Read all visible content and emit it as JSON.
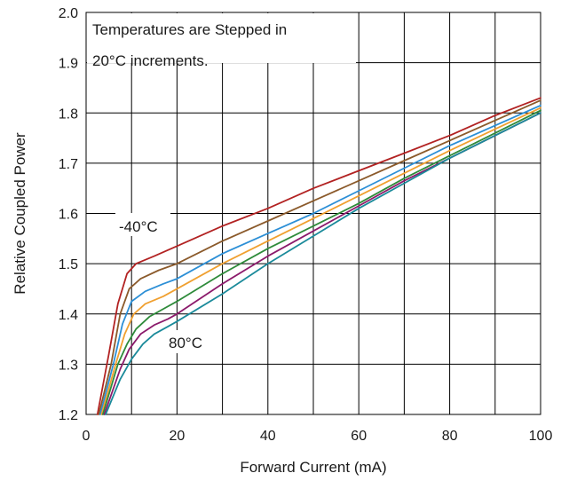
{
  "chart_data": {
    "type": "line",
    "title": "",
    "xlabel": "Forward Current (mA)",
    "ylabel": "Relative Coupled Power",
    "xlim": [
      0,
      100
    ],
    "ylim": [
      1.2,
      2.0
    ],
    "xticks": [
      "0",
      "20",
      "40",
      "60",
      "80",
      "100"
    ],
    "yticks": [
      "1.2",
      "1.3",
      "1.4",
      "1.5",
      "1.6",
      "1.7",
      "1.8",
      "1.9",
      "2.0"
    ],
    "grid": true,
    "legend": "none",
    "annotations": {
      "note_line1": "Temperatures are Stepped in",
      "note_line2": "20°C increments.",
      "label_cold": "-40°C",
      "label_hot": "80°C"
    },
    "series": [
      {
        "color": "#b22222",
        "points": [
          [
            2.5,
            1.2
          ],
          [
            5,
            1.32
          ],
          [
            7,
            1.42
          ],
          [
            9,
            1.48
          ],
          [
            11,
            1.5
          ],
          [
            15,
            1.515
          ],
          [
            20,
            1.535
          ],
          [
            30,
            1.575
          ],
          [
            40,
            1.61
          ],
          [
            50,
            1.65
          ],
          [
            60,
            1.685
          ],
          [
            70,
            1.72
          ],
          [
            80,
            1.755
          ],
          [
            90,
            1.795
          ],
          [
            100,
            1.83
          ]
        ]
      },
      {
        "color": "#8b5a2b",
        "points": [
          [
            2.8,
            1.2
          ],
          [
            5.5,
            1.3
          ],
          [
            7.5,
            1.4
          ],
          [
            9.5,
            1.45
          ],
          [
            12,
            1.47
          ],
          [
            16,
            1.487
          ],
          [
            20,
            1.5
          ],
          [
            30,
            1.545
          ],
          [
            40,
            1.585
          ],
          [
            50,
            1.625
          ],
          [
            60,
            1.665
          ],
          [
            70,
            1.705
          ],
          [
            80,
            1.745
          ],
          [
            90,
            1.785
          ],
          [
            100,
            1.825
          ]
        ]
      },
      {
        "color": "#2c8fd6",
        "points": [
          [
            3.1,
            1.2
          ],
          [
            6,
            1.3
          ],
          [
            8,
            1.38
          ],
          [
            10,
            1.425
          ],
          [
            13,
            1.445
          ],
          [
            17,
            1.46
          ],
          [
            20,
            1.47
          ],
          [
            30,
            1.52
          ],
          [
            40,
            1.56
          ],
          [
            50,
            1.6
          ],
          [
            60,
            1.645
          ],
          [
            70,
            1.69
          ],
          [
            80,
            1.735
          ],
          [
            90,
            1.775
          ],
          [
            100,
            1.815
          ]
        ]
      },
      {
        "color": "#f0a030",
        "points": [
          [
            3.4,
            1.2
          ],
          [
            6.5,
            1.3
          ],
          [
            8.5,
            1.36
          ],
          [
            10.5,
            1.4
          ],
          [
            13,
            1.42
          ],
          [
            17,
            1.435
          ],
          [
            20,
            1.45
          ],
          [
            30,
            1.5
          ],
          [
            40,
            1.545
          ],
          [
            50,
            1.59
          ],
          [
            60,
            1.635
          ],
          [
            70,
            1.68
          ],
          [
            80,
            1.725
          ],
          [
            90,
            1.768
          ],
          [
            100,
            1.81
          ]
        ]
      },
      {
        "color": "#2e8b3a",
        "points": [
          [
            3.7,
            1.2
          ],
          [
            7,
            1.3
          ],
          [
            9,
            1.34
          ],
          [
            11,
            1.37
          ],
          [
            14,
            1.395
          ],
          [
            17,
            1.41
          ],
          [
            20,
            1.425
          ],
          [
            30,
            1.48
          ],
          [
            40,
            1.53
          ],
          [
            50,
            1.575
          ],
          [
            60,
            1.62
          ],
          [
            70,
            1.67
          ],
          [
            80,
            1.715
          ],
          [
            90,
            1.76
          ],
          [
            100,
            1.805
          ]
        ]
      },
      {
        "color": "#8b1a6b",
        "points": [
          [
            4.0,
            1.2
          ],
          [
            7.5,
            1.29
          ],
          [
            9.5,
            1.33
          ],
          [
            12,
            1.36
          ],
          [
            15,
            1.378
          ],
          [
            18,
            1.39
          ],
          [
            20,
            1.4
          ],
          [
            30,
            1.46
          ],
          [
            40,
            1.515
          ],
          [
            50,
            1.565
          ],
          [
            60,
            1.615
          ],
          [
            70,
            1.665
          ],
          [
            80,
            1.71
          ],
          [
            90,
            1.755
          ],
          [
            100,
            1.8
          ]
        ]
      },
      {
        "color": "#1a8a9a",
        "points": [
          [
            4.3,
            1.2
          ],
          [
            7.5,
            1.27
          ],
          [
            10,
            1.31
          ],
          [
            12.5,
            1.34
          ],
          [
            15,
            1.36
          ],
          [
            18,
            1.375
          ],
          [
            20,
            1.385
          ],
          [
            30,
            1.44
          ],
          [
            40,
            1.5
          ],
          [
            50,
            1.555
          ],
          [
            60,
            1.61
          ],
          [
            70,
            1.66
          ],
          [
            80,
            1.71
          ],
          [
            90,
            1.755
          ],
          [
            100,
            1.8
          ]
        ]
      }
    ]
  }
}
